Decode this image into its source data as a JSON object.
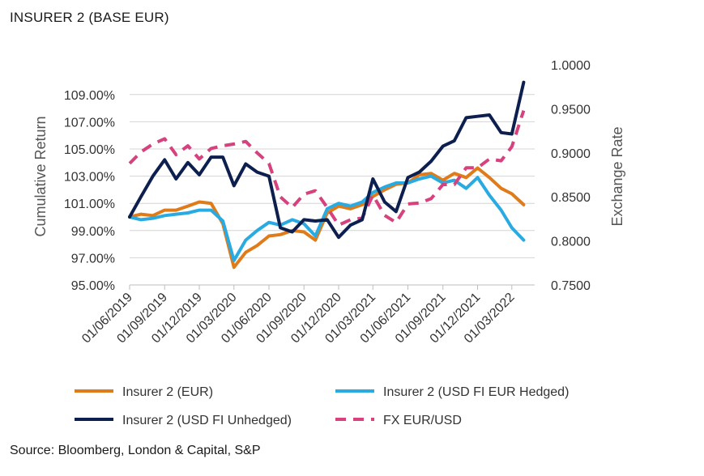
{
  "title": "INSURER 2 (BASE EUR)",
  "source": "Source: Bloomberg, London & Capital, S&P",
  "chart_data": {
    "type": "line",
    "title": "INSURER 2 (BASE EUR)",
    "ylabel": "Cumulative Return",
    "y2label": "Exchange Rate",
    "ylim": [
      95,
      110
    ],
    "y2lim": [
      0.75,
      1.0
    ],
    "yticks": [
      "95.00%",
      "97.00%",
      "99.00%",
      "101.00%",
      "103.00%",
      "105.00%",
      "107.00%",
      "109.00%"
    ],
    "y2ticks": [
      "0.7500",
      "0.8000",
      "0.8500",
      "0.9000",
      "0.9500",
      "1.0000"
    ],
    "xticks": [
      "01/06/2019",
      "01/09/2019",
      "01/12/2019",
      "01/03/2020",
      "01/06/2020",
      "01/09/2020",
      "01/12/2020",
      "01/03/2021",
      "01/06/2021",
      "01/09/2021",
      "01/12/2021",
      "01/03/2022"
    ],
    "x_start": "2019-06-01",
    "x_end": "2022-04-30",
    "grid": "horizontal",
    "legend_position": "bottom",
    "series": [
      {
        "name": "Insurer 2 (EUR)",
        "axis": "left",
        "color": "#e07b1a",
        "style": "solid",
        "values": [
          [
            "2019-06-01",
            100.0
          ],
          [
            "2019-07-01",
            100.2
          ],
          [
            "2019-08-01",
            100.1
          ],
          [
            "2019-09-01",
            100.5
          ],
          [
            "2019-10-01",
            100.5
          ],
          [
            "2019-11-01",
            100.8
          ],
          [
            "2019-12-01",
            101.1
          ],
          [
            "2020-01-01",
            101.0
          ],
          [
            "2020-02-01",
            99.5
          ],
          [
            "2020-03-01",
            96.3
          ],
          [
            "2020-04-01",
            97.4
          ],
          [
            "2020-05-01",
            97.9
          ],
          [
            "2020-06-01",
            98.6
          ],
          [
            "2020-07-01",
            98.7
          ],
          [
            "2020-08-01",
            99.0
          ],
          [
            "2020-09-01",
            98.9
          ],
          [
            "2020-10-01",
            98.3
          ],
          [
            "2020-11-01",
            100.3
          ],
          [
            "2020-12-01",
            100.8
          ],
          [
            "2021-01-01",
            100.6
          ],
          [
            "2021-02-01",
            100.9
          ],
          [
            "2021-03-01",
            101.5
          ],
          [
            "2021-04-01",
            102.0
          ],
          [
            "2021-05-01",
            102.4
          ],
          [
            "2021-06-01",
            102.5
          ],
          [
            "2021-07-01",
            103.1
          ],
          [
            "2021-08-01",
            103.2
          ],
          [
            "2021-09-01",
            102.7
          ],
          [
            "2021-10-01",
            103.2
          ],
          [
            "2021-11-01",
            102.9
          ],
          [
            "2021-12-01",
            103.6
          ],
          [
            "2022-01-01",
            102.9
          ],
          [
            "2022-02-01",
            102.1
          ],
          [
            "2022-03-01",
            101.7
          ],
          [
            "2022-04-01",
            100.9
          ]
        ]
      },
      {
        "name": "Insurer 2 (USD FI EUR Hedged)",
        "axis": "left",
        "color": "#29abe2",
        "style": "solid",
        "values": [
          [
            "2019-06-01",
            100.0
          ],
          [
            "2019-07-01",
            99.8
          ],
          [
            "2019-08-01",
            99.9
          ],
          [
            "2019-09-01",
            100.1
          ],
          [
            "2019-10-01",
            100.2
          ],
          [
            "2019-11-01",
            100.3
          ],
          [
            "2019-12-01",
            100.5
          ],
          [
            "2020-01-01",
            100.5
          ],
          [
            "2020-02-01",
            99.7
          ],
          [
            "2020-03-01",
            96.8
          ],
          [
            "2020-04-01",
            98.3
          ],
          [
            "2020-05-01",
            99.0
          ],
          [
            "2020-06-01",
            99.6
          ],
          [
            "2020-07-01",
            99.4
          ],
          [
            "2020-08-01",
            99.8
          ],
          [
            "2020-09-01",
            99.5
          ],
          [
            "2020-10-01",
            98.6
          ],
          [
            "2020-11-01",
            100.6
          ],
          [
            "2020-12-01",
            101.0
          ],
          [
            "2021-01-01",
            100.8
          ],
          [
            "2021-02-01",
            101.1
          ],
          [
            "2021-03-01",
            101.8
          ],
          [
            "2021-04-01",
            102.2
          ],
          [
            "2021-05-01",
            102.5
          ],
          [
            "2021-06-01",
            102.5
          ],
          [
            "2021-07-01",
            102.8
          ],
          [
            "2021-08-01",
            103.0
          ],
          [
            "2021-09-01",
            102.5
          ],
          [
            "2021-10-01",
            102.7
          ],
          [
            "2021-11-01",
            102.1
          ],
          [
            "2021-12-01",
            102.9
          ],
          [
            "2022-01-01",
            101.6
          ],
          [
            "2022-02-01",
            100.5
          ],
          [
            "2022-03-01",
            99.2
          ],
          [
            "2022-04-01",
            98.3
          ]
        ]
      },
      {
        "name": "Insurer 2 (USD FI Unhedged)",
        "axis": "left",
        "color": "#0d1f4f",
        "style": "solid",
        "values": [
          [
            "2019-06-01",
            100.0
          ],
          [
            "2019-07-01",
            101.5
          ],
          [
            "2019-08-01",
            103.0
          ],
          [
            "2019-09-01",
            104.2
          ],
          [
            "2019-10-01",
            102.8
          ],
          [
            "2019-11-01",
            104.0
          ],
          [
            "2019-12-01",
            103.1
          ],
          [
            "2020-01-01",
            104.4
          ],
          [
            "2020-02-01",
            104.4
          ],
          [
            "2020-03-01",
            102.3
          ],
          [
            "2020-04-01",
            103.9
          ],
          [
            "2020-05-01",
            103.3
          ],
          [
            "2020-06-01",
            103.0
          ],
          [
            "2020-07-01",
            99.2
          ],
          [
            "2020-08-01",
            98.9
          ],
          [
            "2020-09-01",
            99.8
          ],
          [
            "2020-10-01",
            99.7
          ],
          [
            "2020-11-01",
            99.8
          ],
          [
            "2020-12-01",
            98.5
          ],
          [
            "2021-01-01",
            99.4
          ],
          [
            "2021-02-01",
            99.8
          ],
          [
            "2021-03-01",
            102.8
          ],
          [
            "2021-04-01",
            101.1
          ],
          [
            "2021-05-01",
            100.4
          ],
          [
            "2021-06-01",
            102.9
          ],
          [
            "2021-07-01",
            103.3
          ],
          [
            "2021-08-01",
            104.1
          ],
          [
            "2021-09-01",
            105.2
          ],
          [
            "2021-10-01",
            105.6
          ],
          [
            "2021-11-01",
            107.3
          ],
          [
            "2021-12-01",
            107.4
          ],
          [
            "2022-01-01",
            107.5
          ],
          [
            "2022-02-01",
            106.2
          ],
          [
            "2022-03-01",
            106.1
          ],
          [
            "2022-04-01",
            109.9
          ]
        ]
      },
      {
        "name": "FX EUR/USD",
        "axis": "right",
        "color": "#d6417e",
        "style": "dashed",
        "values": [
          [
            "2019-06-01",
            0.888
          ],
          [
            "2019-07-01",
            0.901
          ],
          [
            "2019-08-01",
            0.91
          ],
          [
            "2019-09-01",
            0.916
          ],
          [
            "2019-10-01",
            0.898
          ],
          [
            "2019-11-01",
            0.908
          ],
          [
            "2019-12-01",
            0.893
          ],
          [
            "2020-01-01",
            0.905
          ],
          [
            "2020-02-01",
            0.908
          ],
          [
            "2020-03-01",
            0.91
          ],
          [
            "2020-04-01",
            0.913
          ],
          [
            "2020-05-01",
            0.9
          ],
          [
            "2020-06-01",
            0.888
          ],
          [
            "2020-07-01",
            0.85
          ],
          [
            "2020-08-01",
            0.838
          ],
          [
            "2020-09-01",
            0.853
          ],
          [
            "2020-10-01",
            0.857
          ],
          [
            "2020-11-01",
            0.838
          ],
          [
            "2020-12-01",
            0.818
          ],
          [
            "2021-01-01",
            0.824
          ],
          [
            "2021-02-01",
            0.826
          ],
          [
            "2021-03-01",
            0.852
          ],
          [
            "2021-04-01",
            0.829
          ],
          [
            "2021-05-01",
            0.821
          ],
          [
            "2021-06-01",
            0.842
          ],
          [
            "2021-07-01",
            0.843
          ],
          [
            "2021-08-01",
            0.848
          ],
          [
            "2021-09-01",
            0.864
          ],
          [
            "2021-10-01",
            0.864
          ],
          [
            "2021-11-01",
            0.883
          ],
          [
            "2021-12-01",
            0.883
          ],
          [
            "2022-01-01",
            0.893
          ],
          [
            "2022-02-01",
            0.891
          ],
          [
            "2022-03-01",
            0.907
          ],
          [
            "2022-04-01",
            0.948
          ]
        ]
      }
    ]
  }
}
